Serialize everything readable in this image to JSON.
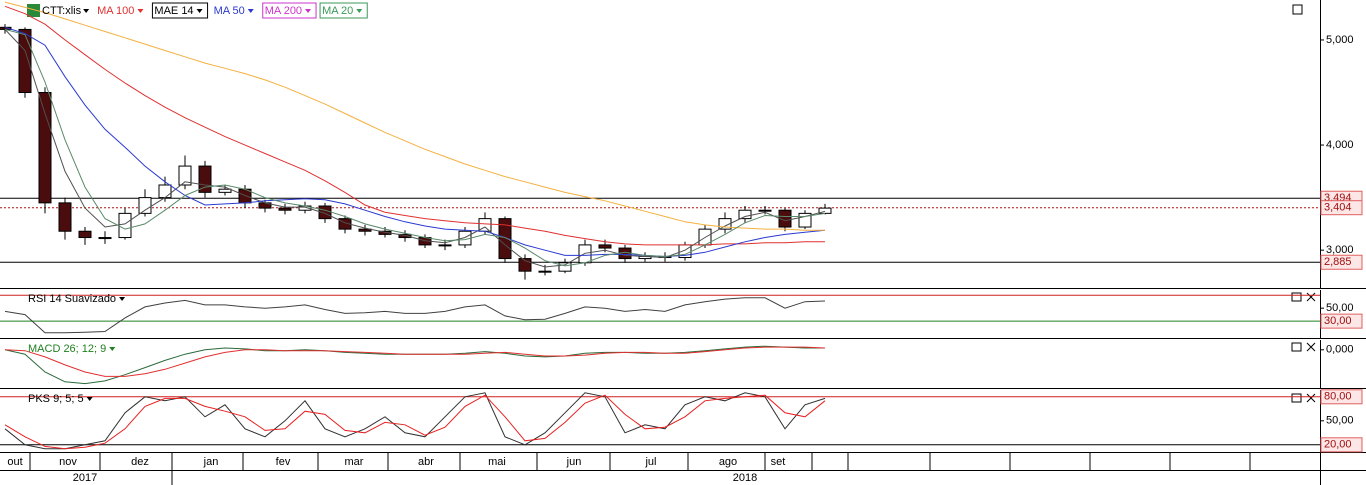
{
  "chart_data": [
    {
      "type": "candlestick",
      "symbol": "CTT:xlis",
      "x": [
        0,
        1,
        2,
        3,
        4,
        5,
        6,
        7,
        8,
        9,
        10,
        11,
        12,
        13,
        14,
        15,
        16,
        17,
        18,
        19,
        20,
        21,
        22,
        23,
        24,
        25,
        26,
        27,
        28,
        29,
        30,
        31,
        32,
        33,
        34,
        35,
        36,
        37,
        38,
        39,
        40,
        41
      ],
      "open": [
        5.12,
        5.1,
        4.5,
        3.45,
        3.18,
        3.12,
        3.12,
        3.35,
        3.5,
        3.62,
        3.8,
        3.55,
        3.58,
        3.45,
        3.4,
        3.38,
        3.42,
        3.3,
        3.2,
        3.18,
        3.15,
        3.12,
        3.05,
        3.05,
        3.18,
        3.3,
        2.92,
        2.8,
        2.8,
        2.88,
        3.05,
        3.02,
        2.92,
        2.94,
        2.93,
        3.05,
        3.2,
        3.3,
        3.38,
        3.38,
        3.22,
        3.35
      ],
      "high": [
        5.15,
        5.12,
        4.55,
        3.5,
        3.22,
        3.18,
        3.4,
        3.58,
        3.7,
        3.9,
        3.85,
        3.62,
        3.62,
        3.48,
        3.44,
        3.46,
        3.45,
        3.33,
        3.24,
        3.22,
        3.19,
        3.15,
        3.1,
        3.22,
        3.36,
        3.32,
        2.96,
        2.86,
        2.92,
        3.1,
        3.1,
        3.05,
        2.98,
        2.98,
        3.08,
        3.24,
        3.36,
        3.42,
        3.42,
        3.4,
        3.38,
        3.44
      ],
      "low": [
        5.06,
        4.45,
        3.35,
        3.1,
        3.05,
        3.06,
        3.1,
        3.32,
        3.46,
        3.58,
        3.5,
        3.52,
        3.4,
        3.36,
        3.34,
        3.35,
        3.26,
        3.16,
        3.14,
        3.12,
        3.08,
        3.02,
        3.0,
        3.02,
        3.15,
        2.88,
        2.72,
        2.76,
        2.78,
        2.85,
        2.98,
        2.88,
        2.89,
        2.89,
        2.9,
        3.02,
        3.16,
        3.26,
        3.34,
        3.18,
        3.2,
        3.34
      ],
      "close": [
        5.1,
        4.5,
        3.45,
        3.18,
        3.12,
        3.12,
        3.35,
        3.5,
        3.62,
        3.8,
        3.55,
        3.58,
        3.45,
        3.4,
        3.38,
        3.42,
        3.3,
        3.2,
        3.18,
        3.15,
        3.12,
        3.05,
        3.05,
        3.18,
        3.3,
        2.92,
        2.8,
        2.8,
        2.88,
        3.05,
        3.02,
        2.92,
        2.94,
        2.93,
        3.05,
        3.2,
        3.3,
        3.38,
        3.38,
        3.22,
        3.35,
        3.4
      ],
      "series": [
        {
          "name": "MA 100",
          "color": "#e03030",
          "legend_color": "#e03030",
          "values": [
            5.32,
            5.25,
            5.15,
            5.0,
            4.86,
            4.72,
            4.59,
            4.47,
            4.36,
            4.26,
            4.17,
            4.08,
            4.0,
            3.92,
            3.84,
            3.76,
            3.66,
            3.55,
            3.43,
            3.36,
            3.33,
            3.3,
            3.28,
            3.26,
            3.25,
            3.24,
            3.21,
            3.18,
            3.14,
            3.11,
            3.08,
            3.06,
            3.05,
            3.05,
            3.05,
            3.05,
            3.06,
            3.06,
            3.07,
            3.07,
            3.08,
            3.08
          ]
        },
        {
          "name": "MAE 14",
          "color": "#505050",
          "legend_color": "#000000",
          "values": [
            5.1,
            4.9,
            4.3,
            3.75,
            3.4,
            3.22,
            3.25,
            3.38,
            3.5,
            3.65,
            3.62,
            3.6,
            3.52,
            3.45,
            3.41,
            3.41,
            3.35,
            3.26,
            3.21,
            3.17,
            3.14,
            3.09,
            3.07,
            3.12,
            3.22,
            3.05,
            2.9,
            2.84,
            2.86,
            2.97,
            3.0,
            2.95,
            2.94,
            2.93,
            3.0,
            3.12,
            3.23,
            3.32,
            3.36,
            3.28,
            3.32,
            3.37
          ]
        },
        {
          "name": "MA 50",
          "color": "#2a3ad0",
          "legend_color": "#2a3ad0",
          "values": [
            5.12,
            5.06,
            4.95,
            4.65,
            4.38,
            4.15,
            3.98,
            3.8,
            3.65,
            3.52,
            3.43,
            3.44,
            3.45,
            3.47,
            3.48,
            3.49,
            3.48,
            3.44,
            3.38,
            3.32,
            3.27,
            3.23,
            3.2,
            3.19,
            3.18,
            3.12,
            3.05,
            3.0,
            2.95,
            2.95,
            2.96,
            2.96,
            2.95,
            2.94,
            2.95,
            2.98,
            3.03,
            3.08,
            3.12,
            3.15,
            3.17,
            3.19
          ]
        },
        {
          "name": "MA 200",
          "color": "#f5b040",
          "legend_color": "#cc33cc",
          "values": [
            5.36,
            5.31,
            5.26,
            5.2,
            5.14,
            5.08,
            5.02,
            4.96,
            4.9,
            4.84,
            4.78,
            4.73,
            4.68,
            4.62,
            4.55,
            4.47,
            4.39,
            4.3,
            4.21,
            4.12,
            4.04,
            3.96,
            3.89,
            3.82,
            3.76,
            3.7,
            3.65,
            3.6,
            3.55,
            3.51,
            3.47,
            3.42,
            3.37,
            3.32,
            3.27,
            3.24,
            3.22,
            3.21,
            3.2,
            3.2,
            3.19,
            3.19
          ]
        },
        {
          "name": "MA 20",
          "color": "#5a8a6a",
          "legend_color": "#3a9a5a",
          "values": [
            5.1,
            5.05,
            4.6,
            4.05,
            3.6,
            3.3,
            3.2,
            3.25,
            3.38,
            3.52,
            3.6,
            3.62,
            3.58,
            3.5,
            3.45,
            3.42,
            3.38,
            3.32,
            3.25,
            3.2,
            3.16,
            3.12,
            3.09,
            3.1,
            3.15,
            3.12,
            3.02,
            2.9,
            2.85,
            2.88,
            2.95,
            2.98,
            2.95,
            2.94,
            2.96,
            3.05,
            3.15,
            3.26,
            3.33,
            3.32,
            3.32,
            3.35
          ]
        }
      ],
      "xlim": [
        -0.25,
        65.75
      ],
      "ylim": [
        2.64,
        5.38
      ],
      "yticks": [
        {
          "value": 5,
          "label": "5,000"
        },
        {
          "value": 4,
          "label": "4,000"
        },
        {
          "value": 3,
          "label": "3,000"
        }
      ],
      "hlines": [
        {
          "value": 3.494,
          "label": "3,494",
          "color": "#000000"
        },
        {
          "value": 3.404,
          "label": "3,404",
          "color": "#b01010",
          "dashed": true
        },
        {
          "value": 2.885,
          "label": "2,885",
          "color": "#000000"
        }
      ],
      "xticks": [
        {
          "value": 0.5,
          "label": "out"
        },
        {
          "value": 3.15,
          "label": "nov"
        },
        {
          "value": 6.75,
          "label": "dez"
        },
        {
          "value": 10.3,
          "label": "jan"
        },
        {
          "value": 13.9,
          "label": "fev"
        },
        {
          "value": 17.45,
          "label": "mar"
        },
        {
          "value": 21.05,
          "label": "abr"
        },
        {
          "value": 24.6,
          "label": "mai"
        },
        {
          "value": 28.45,
          "label": "jun"
        },
        {
          "value": 32.3,
          "label": "jul"
        },
        {
          "value": 36.15,
          "label": "ago"
        },
        {
          "value": 38.65,
          "label": "set"
        }
      ],
      "month_bounds": [
        1.25,
        4.75,
        8.35,
        11.9,
        15.65,
        19.15,
        22.75,
        26.6,
        30.25,
        34.15,
        38.0,
        40.35,
        42.15,
        46.25,
        50.25,
        54.25,
        58.25,
        62.25
      ],
      "years": [
        {
          "value": 4,
          "label": "2017"
        },
        {
          "value": 37,
          "label": "2018"
        }
      ],
      "year_bound": 8.35
    },
    {
      "type": "line",
      "title": "RSI 14 Suavizado",
      "title_color": "#000000",
      "ylim": [
        4,
        78
      ],
      "yticks": [
        {
          "value": 50,
          "label": "50,00"
        }
      ],
      "hlines": [
        {
          "value": 70,
          "color": "#d02020"
        },
        {
          "value": 30,
          "label": "30,00",
          "color": "#208020"
        }
      ],
      "series": [
        {
          "color": "#404040",
          "values": [
            45,
            40,
            12,
            12,
            13,
            14,
            35,
            52,
            58,
            62,
            55,
            55,
            52,
            50,
            52,
            55,
            48,
            42,
            43,
            45,
            42,
            42,
            45,
            52,
            55,
            38,
            32,
            33,
            42,
            52,
            50,
            45,
            48,
            45,
            55,
            60,
            64,
            66,
            66,
            50,
            60,
            61
          ]
        }
      ]
    },
    {
      "type": "line",
      "title": "MACD 26; 12; 9",
      "title_color": "#208020",
      "ylim": [
        -0.43,
        0.11
      ],
      "yticks": [
        {
          "value": 0,
          "label": "0,000"
        }
      ],
      "hlines": [],
      "series": [
        {
          "color": "#2a6a3a",
          "values": [
            0,
            -0.05,
            -0.25,
            -0.36,
            -0.38,
            -0.35,
            -0.28,
            -0.2,
            -0.12,
            -0.05,
            0.0,
            0.02,
            0.01,
            -0.01,
            -0.01,
            0.0,
            -0.01,
            -0.03,
            -0.04,
            -0.05,
            -0.05,
            -0.05,
            -0.05,
            -0.04,
            -0.02,
            -0.04,
            -0.07,
            -0.08,
            -0.07,
            -0.04,
            -0.03,
            -0.03,
            -0.04,
            -0.04,
            -0.03,
            -0.01,
            0.01,
            0.03,
            0.04,
            0.03,
            0.02,
            0.02
          ]
        },
        {
          "color": "#e03030",
          "values": [
            0,
            -0.01,
            -0.08,
            -0.17,
            -0.25,
            -0.3,
            -0.3,
            -0.27,
            -0.22,
            -0.15,
            -0.08,
            -0.03,
            0.0,
            0.0,
            -0.01,
            -0.01,
            -0.01,
            -0.02,
            -0.03,
            -0.04,
            -0.05,
            -0.05,
            -0.05,
            -0.05,
            -0.04,
            -0.03,
            -0.05,
            -0.07,
            -0.07,
            -0.06,
            -0.04,
            -0.03,
            -0.03,
            -0.04,
            -0.04,
            -0.02,
            0.0,
            0.02,
            0.03,
            0.03,
            0.03,
            0.02
          ]
        }
      ]
    },
    {
      "type": "line",
      "title": "PKS 9; 5; 5",
      "title_color": "#000000",
      "ylim": [
        11,
        88.5
      ],
      "yticks": [
        {
          "value": 50,
          "label": "50,00"
        }
      ],
      "hlines": [
        {
          "value": 80,
          "label": "80,00",
          "color": "#d02020"
        },
        {
          "value": 20,
          "label": "20,00",
          "color": "#000000"
        }
      ],
      "series": [
        {
          "color": "#303030",
          "values": [
            40,
            20,
            15,
            15,
            20,
            25,
            60,
            80,
            75,
            80,
            55,
            70,
            40,
            30,
            50,
            75,
            40,
            30,
            40,
            55,
            35,
            30,
            55,
            80,
            85,
            30,
            20,
            35,
            60,
            85,
            80,
            35,
            45,
            40,
            70,
            80,
            75,
            85,
            80,
            40,
            70,
            78
          ]
        },
        {
          "color": "#e82020",
          "values": [
            45,
            30,
            18,
            15,
            17,
            22,
            40,
            68,
            78,
            78,
            68,
            62,
            55,
            38,
            40,
            62,
            58,
            38,
            35,
            48,
            45,
            32,
            42,
            68,
            82,
            55,
            25,
            28,
            48,
            72,
            82,
            58,
            40,
            42,
            55,
            75,
            78,
            80,
            82,
            60,
            55,
            75
          ]
        }
      ]
    }
  ]
}
